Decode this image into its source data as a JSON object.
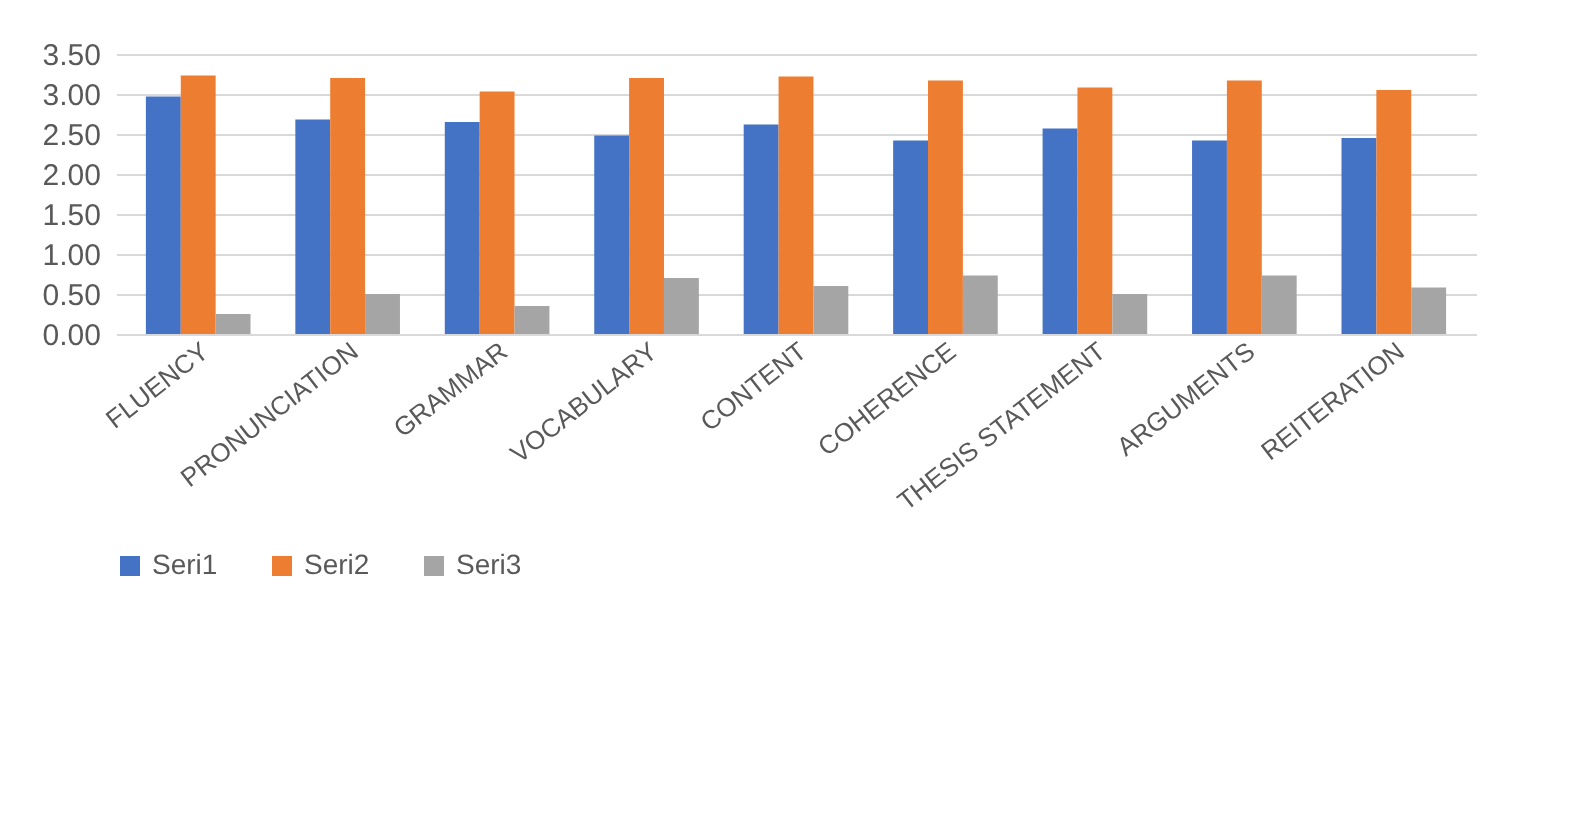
{
  "chart_data": {
    "type": "bar",
    "categories": [
      "FLUENCY",
      "PRONUNCIATION",
      "GRAMMAR",
      "VOCABULARY",
      "CONTENT",
      "COHERENCE",
      "THESIS STATEMENT",
      "ARGUMENTS",
      "REITERATION"
    ],
    "series": [
      {
        "name": "Seri1",
        "color": "#4472c4",
        "values": [
          2.97,
          2.68,
          2.65,
          2.48,
          2.62,
          2.42,
          2.57,
          2.42,
          2.45
        ]
      },
      {
        "name": "Seri2",
        "color": "#ed7d31",
        "values": [
          3.23,
          3.2,
          3.03,
          3.2,
          3.22,
          3.17,
          3.08,
          3.17,
          3.05
        ]
      },
      {
        "name": "Seri3",
        "color": "#a5a5a5",
        "values": [
          0.25,
          0.5,
          0.35,
          0.7,
          0.6,
          0.73,
          0.5,
          0.73,
          0.58
        ]
      }
    ],
    "ylim": [
      0,
      3.5
    ],
    "yticks": [
      {
        "value": 0,
        "label": "0.00"
      },
      {
        "value": 0.5,
        "label": "0.50"
      },
      {
        "value": 1,
        "label": "1.00"
      },
      {
        "value": 1.5,
        "label": "1.50"
      },
      {
        "value": 2,
        "label": "2.00"
      },
      {
        "value": 2.5,
        "label": "2.50"
      },
      {
        "value": 3,
        "label": "3.00"
      },
      {
        "value": 3.5,
        "label": "3.50"
      }
    ],
    "grid": "y",
    "legend": "bottom"
  }
}
